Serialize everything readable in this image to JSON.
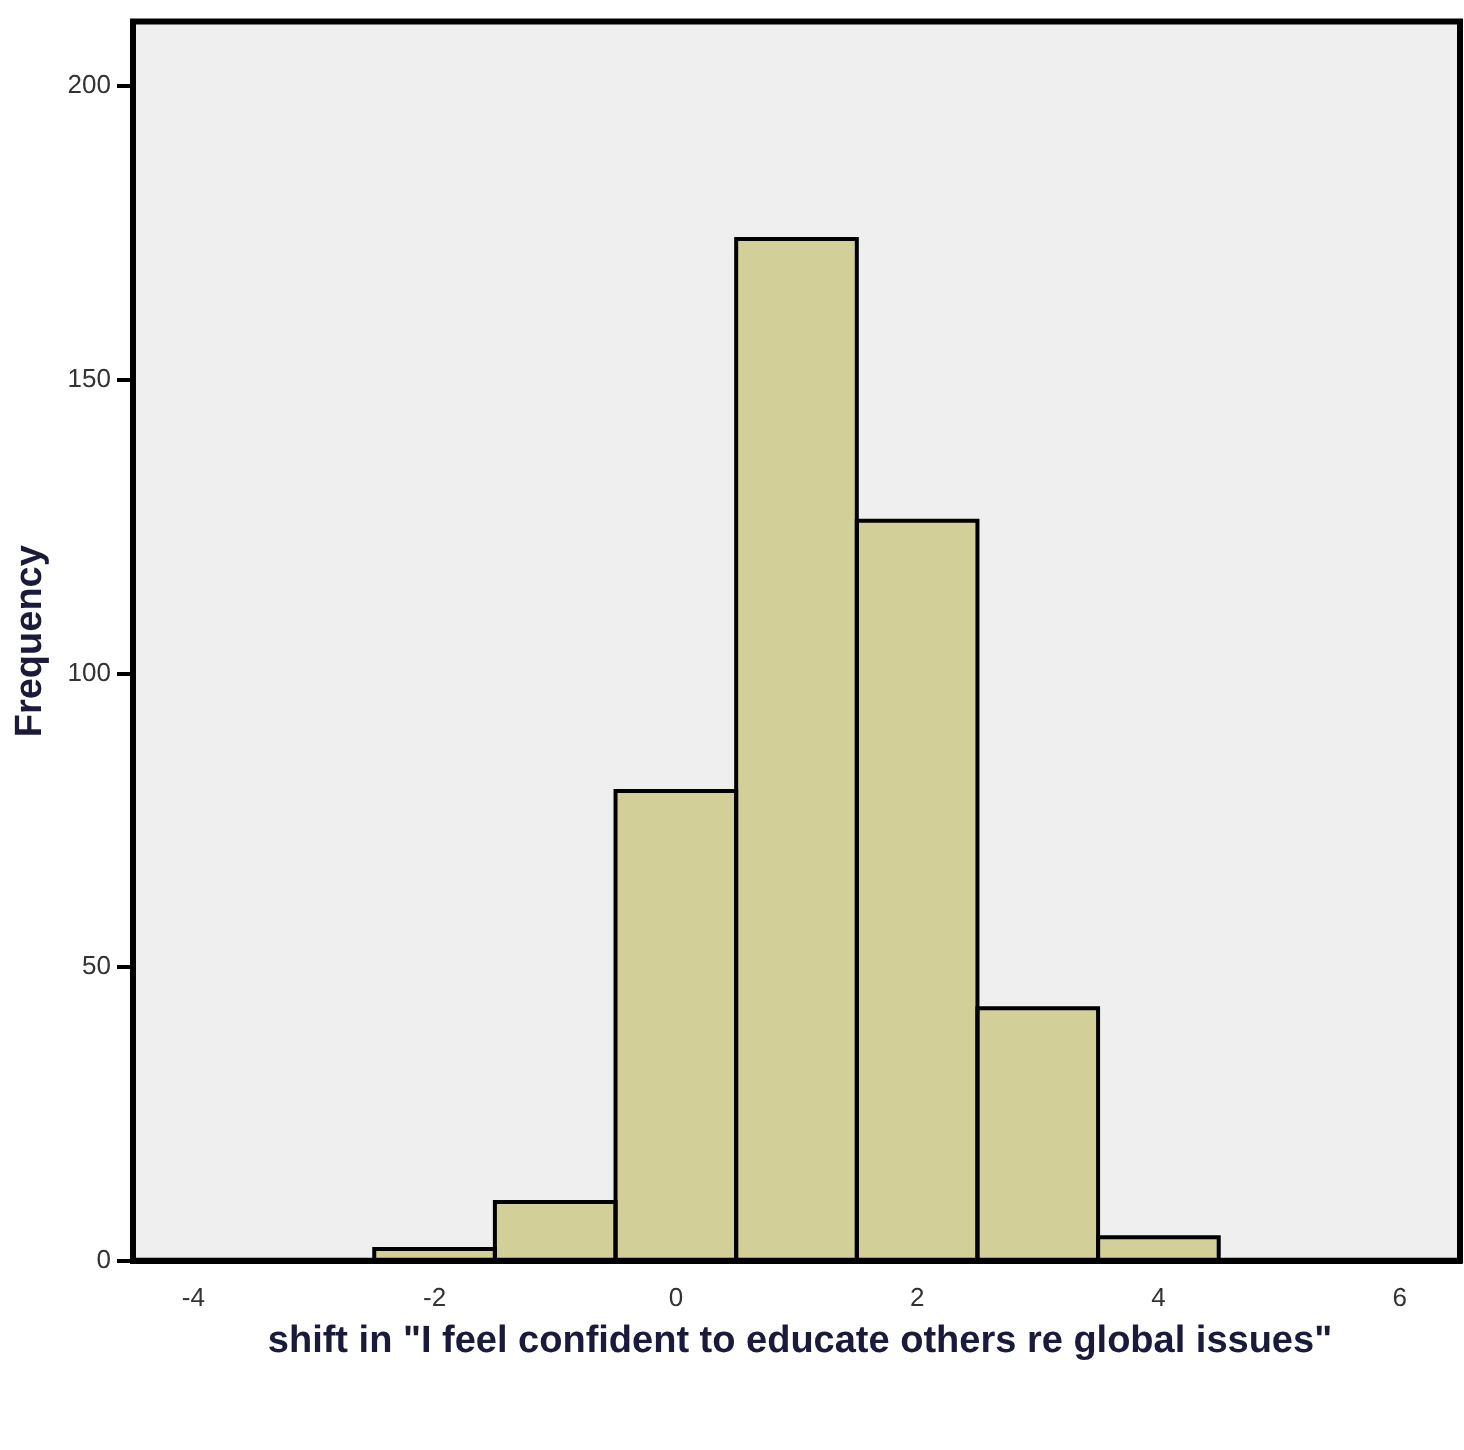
{
  "chart_data": {
    "type": "histogram",
    "xlabel": "shift in \"I feel confident to educate others re global issues\"",
    "ylabel": "Frequency",
    "bins": [
      -2.5,
      -1.5,
      -0.5,
      0.5,
      1.5,
      2.5,
      3.5,
      4.5
    ],
    "values": [
      2,
      10,
      80,
      174,
      126,
      43,
      4
    ],
    "color": "#d3cf98",
    "xlim": [
      -4.5,
      6.5
    ],
    "xticks": [
      -4,
      -2,
      0,
      2,
      4,
      6
    ],
    "ylim": [
      0,
      211
    ],
    "yticks": [
      0,
      50,
      100,
      150,
      200
    ],
    "grid": false,
    "legend": false
  }
}
